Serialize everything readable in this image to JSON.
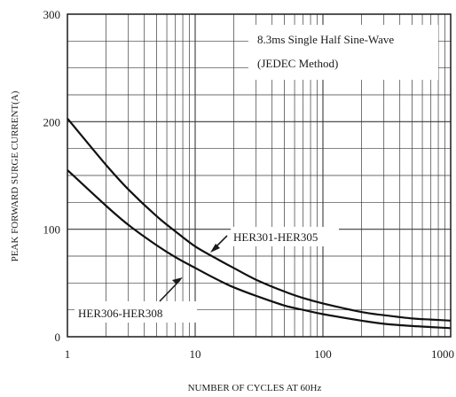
{
  "chart_data": {
    "type": "line",
    "xscale": "log",
    "xlim": [
      1,
      1000
    ],
    "ylim": [
      0,
      300
    ],
    "xticks": [
      1,
      10,
      100,
      1000
    ],
    "xtick_labels": [
      "1",
      "10",
      "100",
      "1000"
    ],
    "yticks": [
      0,
      100,
      200,
      300
    ],
    "ytick_labels": [
      "0",
      "100",
      "200",
      "300"
    ],
    "xlabel": "NUMBER OF CYCLES AT 60Hz",
    "ylabel": "PEAK FORWARD SURGE CURRENT(A)",
    "grid": true,
    "note_lines": [
      "8.3ms Single Half Sine-Wave",
      "(JEDEC Method)"
    ],
    "series": [
      {
        "name": "HER301-HER305",
        "x": [
          1,
          2,
          3,
          5,
          7,
          10,
          15,
          20,
          30,
          50,
          70,
          100,
          200,
          300,
          500,
          700,
          1000
        ],
        "values": [
          203,
          160,
          137,
          112,
          98,
          84,
          72,
          64,
          53,
          42,
          36,
          31,
          23,
          20,
          17,
          16,
          15
        ]
      },
      {
        "name": "HER306-HER308",
        "x": [
          1,
          2,
          3,
          5,
          7,
          10,
          15,
          20,
          30,
          50,
          70,
          100,
          200,
          300,
          500,
          700,
          1000
        ],
        "values": [
          155,
          122,
          104,
          85,
          74,
          64,
          53,
          46,
          38,
          29,
          25,
          21,
          15,
          12,
          10,
          9,
          8
        ]
      }
    ]
  }
}
